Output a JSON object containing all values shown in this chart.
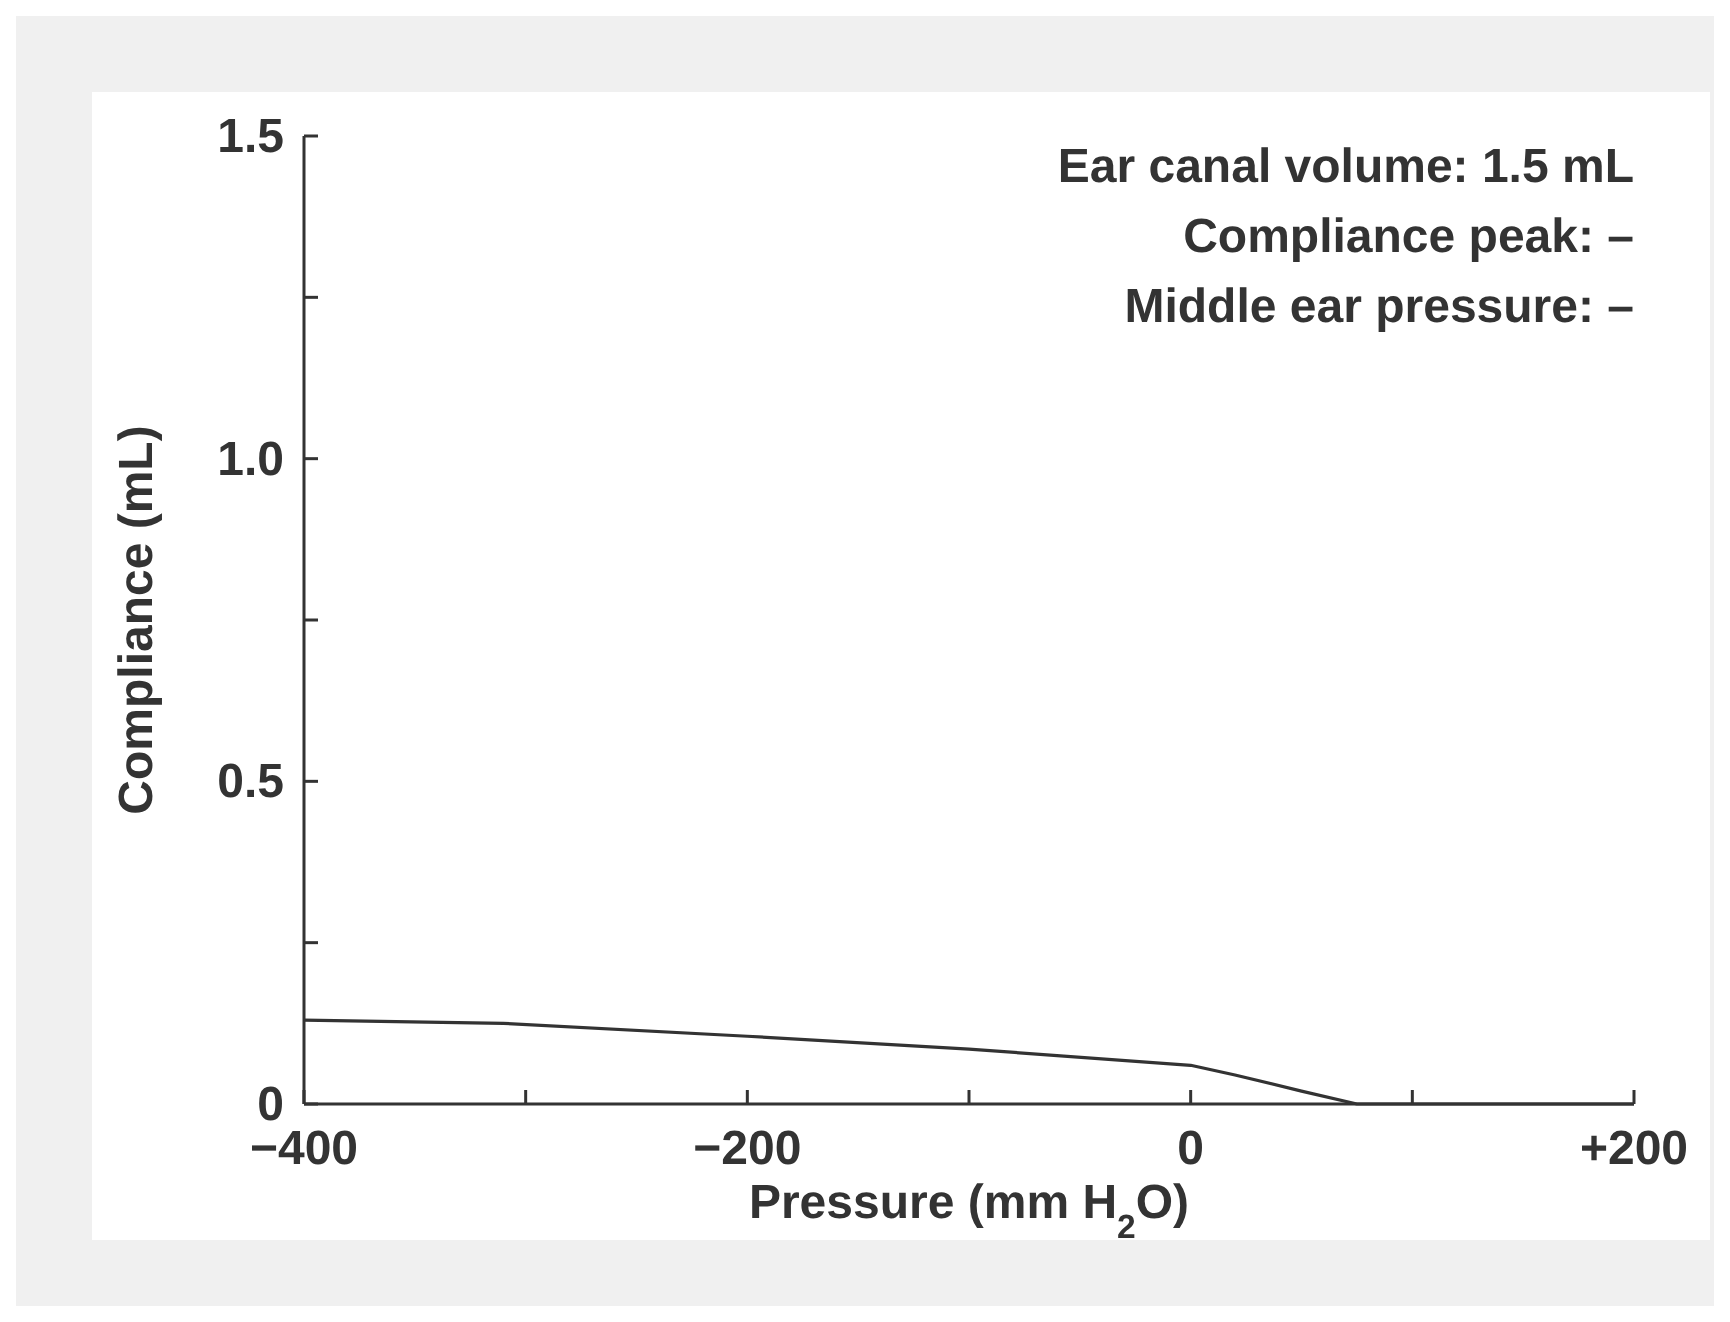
{
  "chart_data": {
    "type": "line",
    "xlabel": "Pressure (mm H$_{2}$O)",
    "ylabel": "Compliance (mL)",
    "annotations": [
      "Ear canal volume:  1.5 mL",
      "Compliance peak:  –",
      "Middle ear pressure:  –"
    ],
    "xlim": [
      -400,
      200
    ],
    "ylim": [
      0,
      1.5
    ],
    "xticks": [
      {
        "value": -400,
        "label": "−400"
      },
      {
        "value": -300,
        "label": null
      },
      {
        "value": -200,
        "label": "−200"
      },
      {
        "value": -100,
        "label": null
      },
      0,
      {
        "value": 100,
        "label": null
      },
      {
        "value": 200,
        "label": "+200"
      }
    ],
    "yticks": [
      0,
      {
        "value": 0.25,
        "label": null
      },
      0.5,
      {
        "value": 0.75,
        "label": null
      },
      {
        "value": 1,
        "label": "1.0"
      },
      {
        "value": 1.25,
        "label": null
      },
      1.5
    ],
    "grid": false,
    "marker": "none",
    "line_style": "solid",
    "series": [
      {
        "color": "#333333",
        "x": [
          -400,
          -310,
          -200,
          -100,
          0,
          20,
          50,
          75,
          120,
          200
        ],
        "values": [
          0.13,
          0.125,
          0.105,
          0.085,
          0.06,
          0.045,
          0.02,
          0.0,
          0.0,
          0.0
        ]
      }
    ]
  }
}
